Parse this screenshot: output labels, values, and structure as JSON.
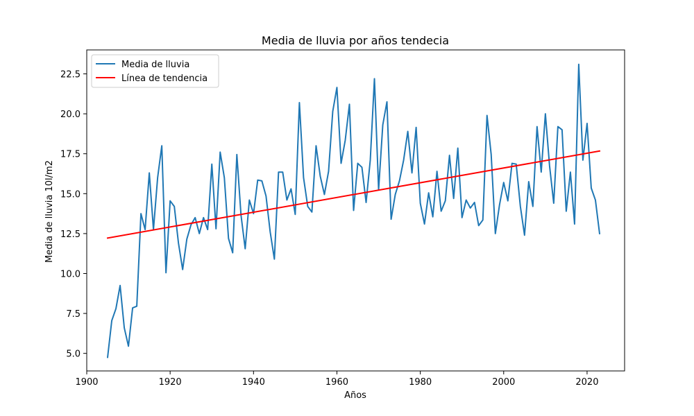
{
  "chart_data": {
    "type": "line",
    "title": "Media de lluvia por años tendecia",
    "xlabel": "Años",
    "ylabel": "Media de lluvia 10l/m2",
    "xlim": [
      1900,
      2029
    ],
    "ylim": [
      3.9,
      24.0
    ],
    "xticks": [
      1900,
      1920,
      1940,
      1960,
      1980,
      2000,
      2020
    ],
    "yticks": [
      5.0,
      7.5,
      10.0,
      12.5,
      15.0,
      17.5,
      20.0,
      22.5
    ],
    "ytick_labels": [
      "5.0",
      "7.5",
      "10.0",
      "12.5",
      "15.0",
      "17.5",
      "20.0",
      "22.5"
    ],
    "grid": false,
    "legend_position": "top-left",
    "series": [
      {
        "name": "Media de lluvia",
        "color": "#1f77b4",
        "x": [
          1905,
          1906,
          1907,
          1908,
          1909,
          1910,
          1911,
          1912,
          1913,
          1914,
          1915,
          1916,
          1917,
          1918,
          1919,
          1920,
          1921,
          1922,
          1923,
          1924,
          1925,
          1926,
          1927,
          1928,
          1929,
          1930,
          1931,
          1932,
          1933,
          1934,
          1935,
          1936,
          1937,
          1938,
          1939,
          1940,
          1941,
          1942,
          1943,
          1944,
          1945,
          1946,
          1947,
          1948,
          1949,
          1950,
          1951,
          1952,
          1953,
          1954,
          1955,
          1956,
          1957,
          1958,
          1959,
          1960,
          1961,
          1962,
          1963,
          1964,
          1965,
          1966,
          1967,
          1968,
          1969,
          1970,
          1971,
          1972,
          1973,
          1974,
          1975,
          1976,
          1977,
          1978,
          1979,
          1980,
          1981,
          1982,
          1983,
          1984,
          1985,
          1986,
          1987,
          1988,
          1989,
          1990,
          1991,
          1992,
          1993,
          1994,
          1995,
          1996,
          1997,
          1998,
          1999,
          2000,
          2001,
          2002,
          2003,
          2004,
          2005,
          2006,
          2007,
          2008,
          2009,
          2010,
          2011,
          2012,
          2013,
          2014,
          2015,
          2016,
          2017,
          2018,
          2019,
          2020,
          2021,
          2022,
          2023
        ],
        "values": [
          4.75,
          7.05,
          7.8,
          9.25,
          6.6,
          5.45,
          7.85,
          7.95,
          13.75,
          12.75,
          16.3,
          12.75,
          16.0,
          18.0,
          10.05,
          14.55,
          14.2,
          11.9,
          10.25,
          12.15,
          13.05,
          13.5,
          12.5,
          13.5,
          12.75,
          16.85,
          12.8,
          17.6,
          16.0,
          12.2,
          11.3,
          17.45,
          13.65,
          11.55,
          14.6,
          13.75,
          15.85,
          15.8,
          14.85,
          12.6,
          10.9,
          16.35,
          16.35,
          14.6,
          15.3,
          13.7,
          20.7,
          16.0,
          14.2,
          13.85,
          18.0,
          16.1,
          14.95,
          16.4,
          20.15,
          21.65,
          16.9,
          18.35,
          20.6,
          13.95,
          16.9,
          16.65,
          14.45,
          17.1,
          22.2,
          15.25,
          19.3,
          20.75,
          13.4,
          14.95,
          15.8,
          17.1,
          18.9,
          16.3,
          19.15,
          14.4,
          13.1,
          15.05,
          13.55,
          16.4,
          13.9,
          14.55,
          17.4,
          14.7,
          17.85,
          13.5,
          14.6,
          14.1,
          14.45,
          13.0,
          13.35,
          19.9,
          17.45,
          12.5,
          14.3,
          15.7,
          14.55,
          16.9,
          16.85,
          14.2,
          12.4,
          15.75,
          14.2,
          19.2,
          16.35,
          20.0,
          16.75,
          14.4,
          19.2,
          19.0,
          13.9,
          16.35,
          13.1,
          23.1,
          17.1,
          19.4,
          15.35,
          14.6,
          12.5
        ]
      },
      {
        "name": "Línea de tendencia",
        "color": "#ff0000",
        "x": [
          1905,
          2023
        ],
        "values": [
          12.22,
          17.67
        ]
      }
    ]
  }
}
